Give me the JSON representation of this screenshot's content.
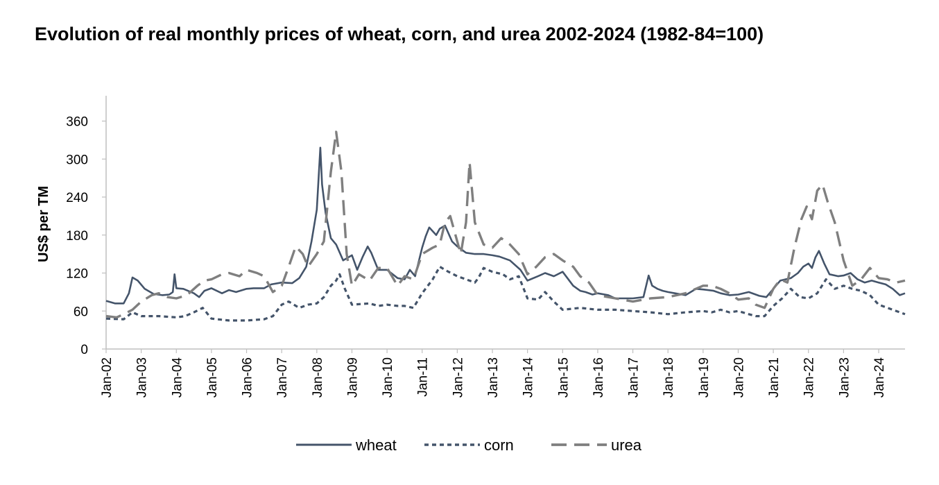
{
  "chart_data": {
    "type": "line",
    "title": "Evolution of real monthly prices of wheat, corn, and urea 2002-2024 (1982-84=100)",
    "xlabel": "",
    "ylabel": "US$ per TM",
    "ylim": [
      0,
      400
    ],
    "yticks": [
      0,
      60,
      120,
      180,
      240,
      300,
      360
    ],
    "xlim": [
      2002.0,
      2024.75
    ],
    "x_tick_labels": [
      "Jan-02",
      "Jan-03",
      "Jan-04",
      "Jan-05",
      "Jan-06",
      "Jan-07",
      "Jan-08",
      "Jan-09",
      "Jan-10",
      "Jan-11",
      "Jan-12",
      "Jan-13",
      "Jan-14",
      "Jan-15",
      "Jan-16",
      "Jan-17",
      "Jan-18",
      "Jan-19",
      "Jan-20",
      "Jan-21",
      "Jan-22",
      "Jan-23",
      "Jan-24"
    ],
    "x_tick_years": [
      2002,
      2003,
      2004,
      2005,
      2006,
      2007,
      2008,
      2009,
      2010,
      2011,
      2012,
      2013,
      2014,
      2015,
      2016,
      2017,
      2018,
      2019,
      2020,
      2021,
      2022,
      2023,
      2024
    ],
    "legend_position": "bottom",
    "series": [
      {
        "name": "wheat",
        "style": "solid",
        "color": "#44546A",
        "x": [
          2002.0,
          2002.25,
          2002.5,
          2002.65,
          2002.75,
          2002.9,
          2003.1,
          2003.35,
          2003.6,
          2003.8,
          2003.9,
          2003.95,
          2004.0,
          2004.2,
          2004.5,
          2004.65,
          2004.8,
          2005.0,
          2005.3,
          2005.5,
          2005.7,
          2006.0,
          2006.2,
          2006.5,
          2006.7,
          2007.0,
          2007.3,
          2007.5,
          2007.7,
          2007.85,
          2008.0,
          2008.1,
          2008.15,
          2008.25,
          2008.4,
          2008.55,
          2008.75,
          2009.0,
          2009.15,
          2009.3,
          2009.45,
          2009.55,
          2009.75,
          2010.0,
          2010.3,
          2010.5,
          2010.65,
          2010.8,
          2011.0,
          2011.1,
          2011.2,
          2011.4,
          2011.5,
          2011.65,
          2011.85,
          2012.0,
          2012.25,
          2012.5,
          2012.75,
          2013.0,
          2013.2,
          2013.5,
          2013.8,
          2014.0,
          2014.3,
          2014.5,
          2014.75,
          2015.0,
          2015.3,
          2015.5,
          2015.65,
          2015.85,
          2016.0,
          2016.3,
          2016.5,
          2016.8,
          2017.0,
          2017.3,
          2017.45,
          2017.55,
          2017.7,
          2017.85,
          2018.0,
          2018.2,
          2018.5,
          2018.8,
          2019.0,
          2019.3,
          2019.5,
          2019.75,
          2020.0,
          2020.3,
          2020.6,
          2020.8,
          2021.0,
          2021.2,
          2021.5,
          2021.7,
          2021.85,
          2022.0,
          2022.1,
          2022.2,
          2022.3,
          2022.45,
          2022.6,
          2022.85,
          2023.0,
          2023.2,
          2023.4,
          2023.6,
          2023.8,
          2024.0,
          2024.2,
          2024.4,
          2024.6,
          2024.75
        ],
        "values": [
          76,
          72,
          72,
          88,
          113,
          108,
          95,
          87,
          85,
          86,
          90,
          118,
          96,
          95,
          88,
          82,
          92,
          96,
          88,
          93,
          90,
          95,
          96,
          96,
          102,
          105,
          104,
          112,
          130,
          170,
          220,
          318,
          260,
          215,
          175,
          165,
          140,
          148,
          125,
          145,
          162,
          152,
          125,
          125,
          112,
          110,
          125,
          115,
          160,
          178,
          192,
          180,
          190,
          195,
          170,
          162,
          152,
          150,
          150,
          148,
          146,
          140,
          125,
          108,
          115,
          120,
          115,
          122,
          100,
          92,
          90,
          86,
          88,
          85,
          80,
          80,
          80,
          82,
          116,
          100,
          95,
          92,
          90,
          88,
          85,
          95,
          94,
          92,
          88,
          85,
          86,
          90,
          84,
          82,
          95,
          108,
          112,
          120,
          130,
          135,
          128,
          145,
          155,
          135,
          118,
          115,
          116,
          120,
          110,
          105,
          108,
          105,
          102,
          95,
          85,
          88
        ]
      },
      {
        "name": "corn",
        "style": "dotted",
        "color": "#44546A",
        "x": [
          2002.0,
          2002.5,
          2002.75,
          2003.0,
          2003.5,
          2004.0,
          2004.25,
          2004.5,
          2004.75,
          2005.0,
          2005.5,
          2006.0,
          2006.5,
          2006.75,
          2007.0,
          2007.2,
          2007.5,
          2007.75,
          2008.0,
          2008.2,
          2008.4,
          2008.55,
          2008.65,
          2008.8,
          2009.0,
          2009.5,
          2009.75,
          2010.0,
          2010.3,
          2010.5,
          2010.75,
          2011.0,
          2011.3,
          2011.5,
          2011.75,
          2012.0,
          2012.25,
          2012.5,
          2012.6,
          2012.75,
          2013.0,
          2013.3,
          2013.5,
          2013.75,
          2014.0,
          2014.3,
          2014.5,
          2014.75,
          2015.0,
          2015.5,
          2016.0,
          2016.5,
          2017.0,
          2017.5,
          2018.0,
          2018.5,
          2019.0,
          2019.25,
          2019.5,
          2019.75,
          2020.0,
          2020.3,
          2020.5,
          2020.75,
          2021.0,
          2021.25,
          2021.5,
          2021.75,
          2022.0,
          2022.25,
          2022.5,
          2022.75,
          2023.0,
          2023.25,
          2023.5,
          2023.75,
          2024.0,
          2024.25,
          2024.5,
          2024.75
        ],
        "values": [
          48,
          47,
          58,
          52,
          52,
          50,
          52,
          58,
          65,
          48,
          45,
          45,
          47,
          52,
          70,
          75,
          65,
          70,
          72,
          82,
          100,
          108,
          118,
          95,
          70,
          72,
          68,
          70,
          68,
          68,
          65,
          88,
          110,
          130,
          122,
          115,
          110,
          105,
          112,
          128,
          122,
          118,
          110,
          115,
          80,
          78,
          90,
          75,
          62,
          65,
          62,
          62,
          60,
          58,
          55,
          58,
          60,
          58,
          62,
          58,
          60,
          55,
          52,
          52,
          68,
          80,
          95,
          82,
          80,
          88,
          110,
          95,
          100,
          95,
          92,
          85,
          70,
          65,
          60,
          55
        ]
      },
      {
        "name": "urea",
        "style": "dashed",
        "color": "#7F7F7F",
        "x": [
          2002.0,
          2002.3,
          2002.5,
          2002.75,
          2003.0,
          2003.3,
          2003.5,
          2003.75,
          2004.0,
          2004.3,
          2004.6,
          2004.8,
          2005.0,
          2005.3,
          2005.5,
          2005.8,
          2006.0,
          2006.3,
          2006.5,
          2006.75,
          2007.0,
          2007.2,
          2007.4,
          2007.6,
          2007.75,
          2008.0,
          2008.2,
          2008.4,
          2008.55,
          2008.7,
          2008.85,
          2009.0,
          2009.2,
          2009.5,
          2009.75,
          2010.0,
          2010.3,
          2010.5,
          2010.75,
          2011.0,
          2011.3,
          2011.5,
          2011.65,
          2011.8,
          2011.95,
          2012.1,
          2012.25,
          2012.35,
          2012.5,
          2012.75,
          2013.0,
          2013.25,
          2013.5,
          2013.75,
          2014.0,
          2014.25,
          2014.5,
          2014.75,
          2015.0,
          2015.3,
          2015.5,
          2015.75,
          2016.0,
          2016.5,
          2017.0,
          2017.5,
          2018.0,
          2018.5,
          2019.0,
          2019.25,
          2019.5,
          2019.75,
          2020.0,
          2020.3,
          2020.5,
          2020.75,
          2021.0,
          2021.2,
          2021.4,
          2021.6,
          2021.8,
          2021.95,
          2022.1,
          2022.25,
          2022.4,
          2022.55,
          2022.75,
          2023.0,
          2023.25,
          2023.5,
          2023.75,
          2024.0,
          2024.25,
          2024.5,
          2024.75
        ],
        "values": [
          52,
          50,
          55,
          62,
          75,
          85,
          88,
          82,
          80,
          85,
          100,
          108,
          110,
          118,
          120,
          115,
          125,
          120,
          115,
          90,
          100,
          130,
          162,
          150,
          130,
          150,
          170,
          280,
          343,
          280,
          150,
          100,
          118,
          108,
          128,
          128,
          100,
          115,
          110,
          150,
          160,
          165,
          200,
          210,
          180,
          150,
          200,
          295,
          200,
          165,
          160,
          175,
          165,
          150,
          118,
          130,
          145,
          150,
          140,
          130,
          115,
          105,
          85,
          80,
          75,
          80,
          82,
          88,
          100,
          100,
          95,
          88,
          78,
          80,
          70,
          65,
          95,
          110,
          105,
          160,
          205,
          225,
          205,
          250,
          260,
          232,
          200,
          140,
          100,
          110,
          128,
          112,
          110,
          105,
          108
        ]
      }
    ]
  }
}
